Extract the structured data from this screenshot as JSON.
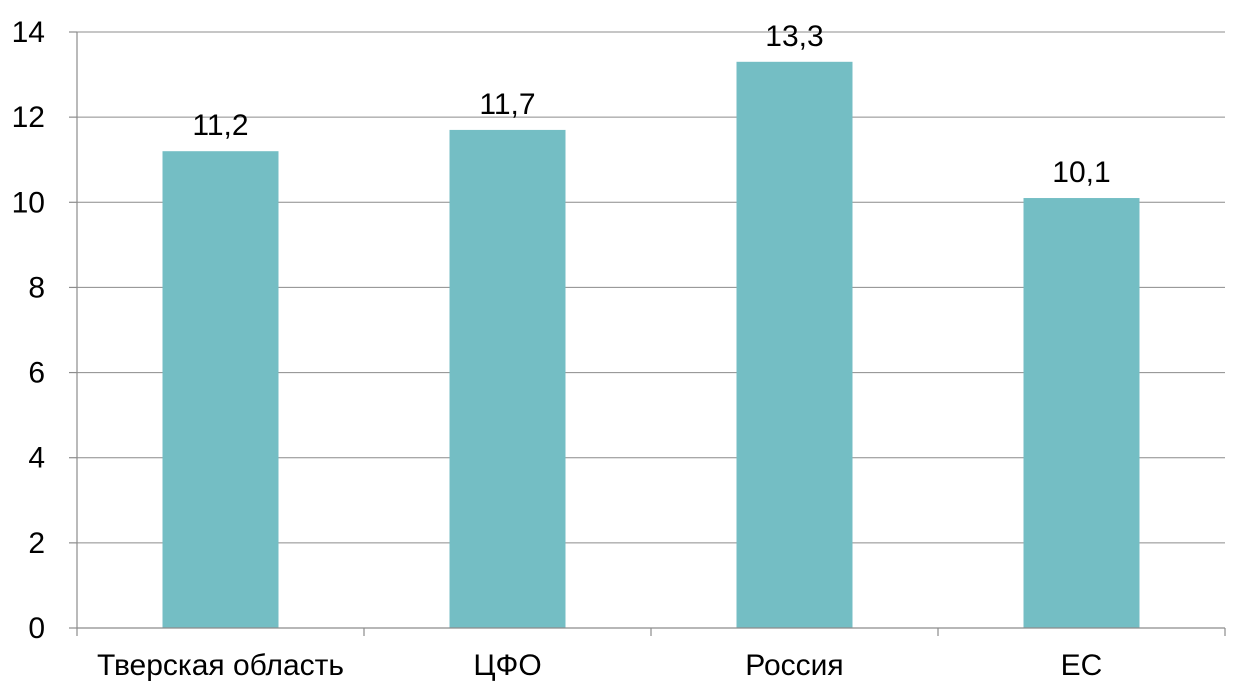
{
  "chart_data": {
    "type": "bar",
    "title": "",
    "xlabel": "",
    "ylabel": "",
    "categories": [
      "Тверская область",
      "ЦФО",
      "Россия",
      "ЕС"
    ],
    "values": [
      11.2,
      11.7,
      13.3,
      10.1
    ],
    "data_labels": [
      "11,2",
      "11,7",
      "13,3",
      "10,1"
    ],
    "ylim": [
      0,
      14
    ],
    "yticks": [
      0,
      2,
      4,
      6,
      8,
      10,
      12,
      14
    ],
    "grid": true,
    "legend": "none",
    "bar_color": "#74bec4"
  }
}
